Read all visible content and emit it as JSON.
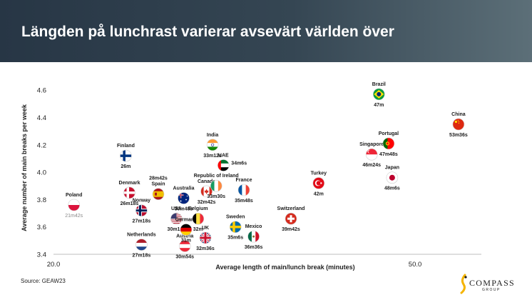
{
  "header": {
    "title": "Längden på lunchrast varierar avsevärt världen över"
  },
  "source": "Source: GEAW23",
  "logo": {
    "name": "COMPASS",
    "sub": "GROUP"
  },
  "chart_data": {
    "type": "scatter",
    "xlabel": "Average length of main/lunch break (minutes)",
    "ylabel": "Average number of main breaks per week",
    "xlim": [
      20.0,
      55.5
    ],
    "ylim": [
      3.4,
      4.7
    ],
    "x_ticks": [
      "20.0",
      "50.0"
    ],
    "x_tick_values": [
      20,
      50
    ],
    "y_ticks": [
      "3.4",
      "3.6",
      "3.8",
      "4.0",
      "4.2",
      "4.4",
      "4.6"
    ],
    "y_tick_values": [
      3.4,
      3.6,
      3.8,
      4.0,
      4.2,
      4.4,
      4.6
    ],
    "grid": false,
    "points": [
      {
        "country": "Poland",
        "value_label": "21m42s",
        "x": 21.7,
        "y": 3.76,
        "flag": "poland",
        "name_pos": "above",
        "value_pos": "below",
        "value_muted": true
      },
      {
        "country": "Finland",
        "value_label": "26m",
        "x": 26.0,
        "y": 4.12,
        "flag": "finland",
        "name_pos": "above",
        "value_pos": "below"
      },
      {
        "country": "Denmark",
        "value_label": "26m18s",
        "x": 26.3,
        "y": 3.85,
        "flag": "denmark",
        "name_pos": "above",
        "value_pos": "below"
      },
      {
        "country": "Norway",
        "value_label": "27m18s",
        "x": 27.3,
        "y": 3.72,
        "flag": "norway",
        "name_pos": "above",
        "value_pos": "below"
      },
      {
        "country": "Netherlands",
        "value_label": "27m18s",
        "x": 27.3,
        "y": 3.47,
        "flag": "netherlands",
        "name_pos": "above",
        "value_pos": "below"
      },
      {
        "country": "Spain",
        "value_label": "28m42s",
        "x": 28.7,
        "y": 3.84,
        "flag": "spain",
        "name_pos": "above",
        "value_pos": "above2"
      },
      {
        "country": "USA",
        "value_label": "30m12s",
        "x": 30.2,
        "y": 3.66,
        "flag": "usa",
        "name_pos": "above",
        "value_pos": "below"
      },
      {
        "country": "Australia",
        "value_label": "30m48s",
        "x": 30.8,
        "y": 3.81,
        "flag": "australia",
        "name_pos": "above",
        "value_pos": "below"
      },
      {
        "country": "Austria",
        "value_label": "30m54s",
        "x": 30.9,
        "y": 3.46,
        "flag": "austria",
        "name_pos": "above",
        "value_pos": "below"
      },
      {
        "country": "Germany",
        "value_label": "31m",
        "x": 31.0,
        "y": 3.58,
        "flag": "germany",
        "name_pos": "above",
        "value_pos": "below"
      },
      {
        "country": "Canada",
        "value_label": "32m42s",
        "x": 32.7,
        "y": 3.86,
        "flag": "canada",
        "name_pos": "above",
        "value_pos": "below"
      },
      {
        "country": "Belgium",
        "value_label": "32m",
        "x": 32.0,
        "y": 3.66,
        "flag": "belgium",
        "name_pos": "above",
        "value_pos": "below"
      },
      {
        "country": "UK",
        "value_label": "32m36s",
        "x": 32.6,
        "y": 3.52,
        "flag": "uk",
        "name_pos": "above",
        "value_pos": "below"
      },
      {
        "country": "India",
        "value_label": "33m12s",
        "x": 33.2,
        "y": 4.2,
        "flag": "india",
        "name_pos": "above",
        "value_pos": "below"
      },
      {
        "country": "Republic of Ireland",
        "value_label": "33m30s",
        "x": 33.5,
        "y": 3.9,
        "flag": "ireland",
        "name_pos": "above",
        "value_pos": "below"
      },
      {
        "country": "UAE",
        "value_label": "34m6s",
        "x": 34.1,
        "y": 4.05,
        "flag": "uae",
        "name_pos": "above",
        "value_pos": "right"
      },
      {
        "country": "France",
        "value_label": "35m48s",
        "x": 35.8,
        "y": 3.87,
        "flag": "france",
        "name_pos": "above",
        "value_pos": "below"
      },
      {
        "country": "Sweden",
        "value_label": "35m6s",
        "x": 35.1,
        "y": 3.6,
        "flag": "sweden",
        "name_pos": "above",
        "value_pos": "below"
      },
      {
        "country": "Mexico",
        "value_label": "36m36s",
        "x": 36.6,
        "y": 3.53,
        "flag": "mexico",
        "name_pos": "above",
        "value_pos": "below"
      },
      {
        "country": "Switzerland",
        "value_label": "39m42s",
        "x": 39.7,
        "y": 3.66,
        "flag": "switzerland",
        "name_pos": "above",
        "value_pos": "below"
      },
      {
        "country": "Turkey",
        "value_label": "42m",
        "x": 42.0,
        "y": 3.92,
        "flag": "turkey",
        "name_pos": "above",
        "value_pos": "below"
      },
      {
        "country": "Singapore",
        "value_label": "46m24s",
        "x": 46.4,
        "y": 4.13,
        "flag": "singapore",
        "name_pos": "above",
        "value_pos": "below"
      },
      {
        "country": "Brazil",
        "value_label": "47m",
        "x": 47.0,
        "y": 4.57,
        "flag": "brazil",
        "name_pos": "above",
        "value_pos": "below"
      },
      {
        "country": "Portugal",
        "value_label": "47m48s",
        "x": 47.8,
        "y": 4.21,
        "flag": "portugal",
        "name_pos": "above",
        "value_pos": "below"
      },
      {
        "country": "Japan",
        "value_label": "48m6s",
        "x": 48.1,
        "y": 3.96,
        "flag": "japan",
        "name_pos": "above",
        "value_pos": "below"
      },
      {
        "country": "China",
        "value_label": "53m36s",
        "x": 53.6,
        "y": 4.35,
        "flag": "china",
        "name_pos": "above",
        "value_pos": "below"
      }
    ]
  }
}
